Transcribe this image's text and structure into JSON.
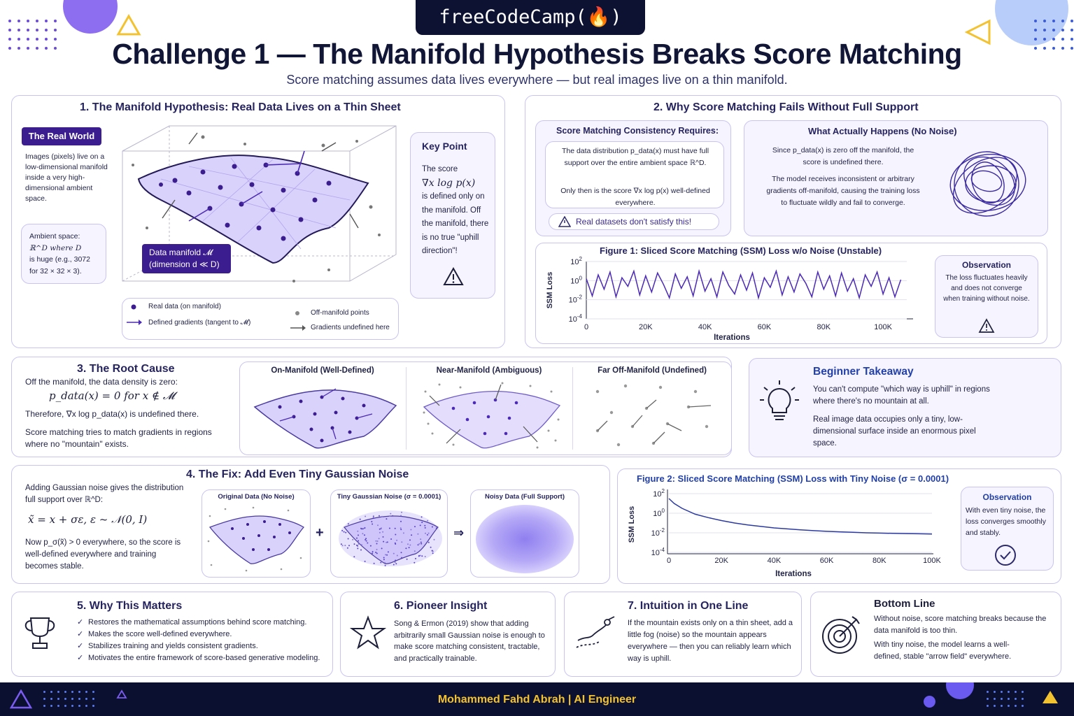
{
  "brand": "freeCodeCamp(🔥)",
  "title": "Challenge 1 — The Manifold Hypothesis Breaks Score Matching",
  "subtitle": "Score matching assumes data lives everywhere — but real images live on a thin manifold.",
  "footer": "Mohammed Fahd Abrah | AI Engineer",
  "colors": {
    "accent": "#4b2ab5",
    "dark": "#0d1233",
    "panel_border": "#c9c4ef",
    "gold": "#f2c230"
  },
  "s1": {
    "title": "1. The Manifold Hypothesis: Real Data Lives on a Thin Sheet",
    "real_world_tag": "The Real World",
    "real_world_text": "Images (pixels) live on a low-dimensional manifold inside a very high-dimensional ambient space.",
    "ambient_l1": "Ambient space:",
    "ambient_l2": "ℝ^D where D",
    "ambient_l3": "is huge (e.g., 3072",
    "ambient_l4": "for 32 × 32 × 3).",
    "manifold_l1": "Data manifold 𝓜",
    "manifold_l2": "(dimension d ≪ D)",
    "key_title": "Key Point",
    "key_l1": "The score",
    "key_l2": "∇x log p(x)",
    "key_l3": "is defined only on the manifold. Off the manifold, there is no true \"uphill direction\"!",
    "legend": [
      "Real data (on manifold)",
      "Defined gradients (tangent to 𝓜)",
      "Off-manifold points",
      "Gradients undefined here"
    ]
  },
  "s2": {
    "title": "2. Why Score Matching Fails Without Full Support",
    "req_title": "Score Matching Consistency Requires:",
    "req_l1": "The data distribution p_data(x) must have full support over the entire ambient space ℝ^D.",
    "req_l2": "Only then is the score ∇x log p(x) well-defined everywhere.",
    "warn": "Real datasets don't satisfy this!",
    "happens_title": "What Actually Happens (No Noise)",
    "happens_l1": "Since p_data(x) is zero off the manifold, the score is undefined there.",
    "happens_l2": "The model receives inconsistent or arbitrary gradients off-manifold, causing the training loss to fluctuate wildly and fail to converge.",
    "obs_title": "Observation",
    "obs_text": "The loss fluctuates heavily and does not converge when training without noise."
  },
  "s3": {
    "title": "3. The Root Cause",
    "l1": "Off the manifold, the data density is zero:",
    "eq": "p_data(x) = 0  for  x ∉ 𝓜",
    "l2": "Therefore, ∇x log p_data(x)  is undefined there.",
    "l3": "Score matching tries to match gradients in regions where no \"mountain\" exists.",
    "panels": [
      "On-Manifold (Well-Defined)",
      "Near-Manifold (Ambiguous)",
      "Far Off-Manifold (Undefined)"
    ]
  },
  "beginner": {
    "title": "Beginner Takeaway",
    "l1": "You can't compute \"which way is uphill\" in regions where there's no mountain at all.",
    "l2": "Real image data occupies only a tiny, low-dimensional surface inside an enormous pixel space."
  },
  "s4": {
    "title": "4. The Fix: Add Even Tiny Gaussian Noise",
    "l1": "Adding Gaussian noise gives the distribution full support over ℝ^D:",
    "eq": "x̃ = x + σε,   ε ~ 𝒩(0, I)",
    "l2": "Now p_σ(x̃) > 0 everywhere, so the score is well-defined everywhere and training becomes stable.",
    "img1": "Original Data (No Noise)",
    "img2": "Tiny Gaussian Noise (σ = 0.0001)",
    "img3": "Noisy Data (Full Support)",
    "plus": "+",
    "arrow": "⇒",
    "obs_title": "Observation",
    "obs_text": "With even tiny noise, the loss converges smoothly and stably."
  },
  "s5": {
    "title": "5. Why This Matters",
    "items": [
      "Restores the mathematical assumptions behind score matching.",
      "Makes the score well-defined everywhere.",
      "Stabilizes training and yields consistent gradients.",
      "Motivates the entire framework of score-based generative modeling."
    ]
  },
  "s6": {
    "title": "6. Pioneer Insight",
    "text": "Song & Ermon (2019) show that adding arbitrarily small Gaussian noise is enough to make score matching consistent, tractable, and practically trainable."
  },
  "s7": {
    "title": "7. Intuition in One Line",
    "text": "If the mountain exists only on a thin sheet, add a little fog (noise) so the mountain appears everywhere — then you can reliably learn which way is uphill."
  },
  "bottom": {
    "title": "Bottom Line",
    "l1": "Without noise, score matching breaks because the data manifold is too thin.",
    "l2": "With tiny noise, the model learns a well-defined, stable \"arrow field\" everywhere."
  },
  "chart_data": [
    {
      "type": "line",
      "title": "Figure 1: Sliced Score Matching (SSM) Loss w/o Noise (Unstable)",
      "xlabel": "Iterations",
      "ylabel": "SSM Loss",
      "xticks": [
        "0",
        "20K",
        "40K",
        "60K",
        "80K",
        "100K"
      ],
      "yticks": [
        "10^-4",
        "10^-2",
        "10^0",
        "10^2"
      ],
      "yscale": "log",
      "xlim": [
        0,
        108000
      ],
      "ylim_exp": [
        -4,
        2
      ],
      "series": [
        {
          "color": "#4b2ab5",
          "x": [
            0,
            2000,
            4000,
            6000,
            8000,
            10000,
            12000,
            14000,
            16000,
            18000,
            20000,
            22000,
            24000,
            26000,
            28000,
            30000,
            32000,
            34000,
            36000,
            38000,
            40000,
            42000,
            44000,
            46000,
            48000,
            50000,
            52000,
            54000,
            56000,
            58000,
            60000,
            62000,
            64000,
            66000,
            68000,
            70000,
            72000,
            74000,
            76000,
            78000,
            80000,
            82000,
            84000,
            86000,
            88000,
            90000,
            92000,
            94000,
            96000,
            98000,
            100000,
            102000,
            104000,
            106000
          ],
          "log10_y": [
            0.2,
            -1.6,
            0.6,
            -0.9,
            0.9,
            -1.7,
            0.3,
            -0.6,
            1.0,
            -1.5,
            0.5,
            -1.2,
            0.8,
            -0.4,
            -1.8,
            0.7,
            -0.8,
            0.4,
            -1.6,
            1.0,
            -1.1,
            0.2,
            -1.7,
            0.9,
            -0.5,
            -1.4,
            0.6,
            -1.0,
            0.8,
            -1.8,
            0.3,
            -0.7,
            1.0,
            -1.5,
            0.4,
            -1.2,
            0.7,
            -0.3,
            -1.7,
            0.9,
            -0.9,
            0.5,
            -1.6,
            0.8,
            -1.1,
            0.2,
            -1.8,
            0.6,
            -0.6,
            0.9,
            -1.4,
            0.3,
            -1.7,
            0.1
          ]
        }
      ]
    },
    {
      "type": "line",
      "title": "Figure 2: Sliced Score Matching (SSM) Loss with Tiny Noise (σ = 0.0001)",
      "xlabel": "Iterations",
      "ylabel": "SSM Loss",
      "xticks": [
        "0",
        "20K",
        "40K",
        "60K",
        "80K",
        "100K"
      ],
      "yticks": [
        "10^-4",
        "10^-2",
        "10^0",
        "10^2"
      ],
      "yscale": "log",
      "xlim": [
        0,
        100000
      ],
      "ylim_exp": [
        -4,
        2
      ],
      "series": [
        {
          "color": "#2c3aa0",
          "x": [
            0,
            2000,
            5000,
            10000,
            15000,
            20000,
            25000,
            30000,
            35000,
            40000,
            45000,
            50000,
            55000,
            60000,
            65000,
            70000,
            75000,
            80000,
            85000,
            90000,
            95000,
            100000
          ],
          "log10_y": [
            1.5,
            1.0,
            0.5,
            -0.1,
            -0.45,
            -0.75,
            -1.0,
            -1.2,
            -1.35,
            -1.5,
            -1.6,
            -1.7,
            -1.78,
            -1.85,
            -1.9,
            -1.95,
            -2.0,
            -2.03,
            -2.06,
            -2.08,
            -2.1,
            -2.12
          ]
        }
      ]
    }
  ]
}
